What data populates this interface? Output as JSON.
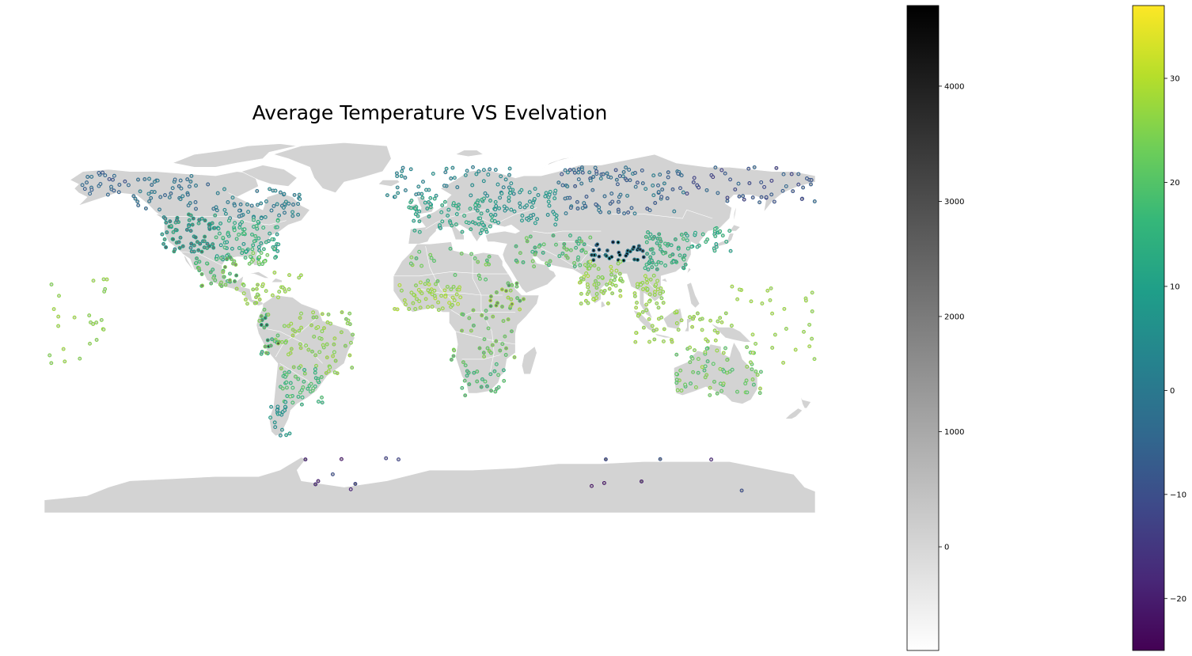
{
  "title": "Average Temperature VS Evelvation",
  "colors": {
    "land": "#d3d3d3",
    "border": "#ffffff",
    "background": "#ffffff",
    "viridis": [
      "#440154",
      "#482878",
      "#3e4989",
      "#31688e",
      "#26828e",
      "#1f9e89",
      "#35b779",
      "#6ece58",
      "#b5de2b",
      "#fde725"
    ],
    "greys": [
      "#ffffff",
      "#000000"
    ]
  },
  "elevation_colorbar": {
    "range": [
      -900,
      4700
    ],
    "ticks": [
      0,
      1000,
      2000,
      3000,
      4000
    ],
    "tick_labels": [
      "0",
      "1000",
      "2000",
      "3000",
      "4000"
    ],
    "colormap": "Greys"
  },
  "temperature_colorbar": {
    "range": [
      -25,
      37
    ],
    "ticks": [
      -20,
      -10,
      0,
      10,
      20,
      30
    ],
    "tick_labels": [
      "−20",
      "−10",
      "0",
      "10",
      "20",
      "30"
    ],
    "colormap": "viridis"
  },
  "chart_data": {
    "type": "scatter",
    "title": "Average Temperature VS Evelvation",
    "map": "world (plate carrée)",
    "marker_fill": "elevation (Greys colormap)",
    "marker_edge": "average temperature (viridis colormap)",
    "regions": [
      {
        "lon": [
          -165,
          -140
        ],
        "lat": [
          58,
          70
        ],
        "n": 25,
        "temp": [
          -10,
          -2
        ],
        "elev": [
          0,
          400
        ]
      },
      {
        "lon": [
          -140,
          -100
        ],
        "lat": [
          52,
          68
        ],
        "n": 45,
        "temp": [
          -6,
          2
        ],
        "elev": [
          200,
          700
        ]
      },
      {
        "lon": [
          -100,
          -60
        ],
        "lat": [
          48,
          62
        ],
        "n": 55,
        "temp": [
          -2,
          5
        ],
        "elev": [
          100,
          500
        ]
      },
      {
        "lon": [
          -125,
          -100
        ],
        "lat": [
          32,
          50
        ],
        "n": 70,
        "temp": [
          4,
          14
        ],
        "elev": [
          1000,
          2500
        ]
      },
      {
        "lon": [
          -100,
          -70
        ],
        "lat": [
          28,
          48
        ],
        "n": 90,
        "temp": [
          8,
          18
        ],
        "elev": [
          100,
          500
        ]
      },
      {
        "lon": [
          -85,
          -75
        ],
        "lat": [
          26,
          32
        ],
        "n": 15,
        "temp": [
          20,
          25
        ],
        "elev": [
          0,
          100
        ]
      },
      {
        "lon": [
          -110,
          -90
        ],
        "lat": [
          16,
          30
        ],
        "n": 40,
        "temp": [
          16,
          26
        ],
        "elev": [
          500,
          2200
        ]
      },
      {
        "lon": [
          -92,
          -78
        ],
        "lat": [
          8,
          18
        ],
        "n": 15,
        "temp": [
          24,
          28
        ],
        "elev": [
          0,
          1000
        ]
      },
      {
        "lon": [
          -80,
          -60
        ],
        "lat": [
          10,
          24
        ],
        "n": 15,
        "temp": [
          26,
          28
        ],
        "elev": [
          0,
          200
        ]
      },
      {
        "lon": [
          -80,
          -70
        ],
        "lat": [
          -18,
          6
        ],
        "n": 25,
        "temp": [
          12,
          26
        ],
        "elev": [
          500,
          3500
        ]
      },
      {
        "lon": [
          -70,
          -35
        ],
        "lat": [
          -25,
          5
        ],
        "n": 70,
        "temp": [
          24,
          28
        ],
        "elev": [
          50,
          800
        ]
      },
      {
        "lon": [
          -70,
          -50
        ],
        "lat": [
          -40,
          -22
        ],
        "n": 45,
        "temp": [
          14,
          22
        ],
        "elev": [
          50,
          600
        ]
      },
      {
        "lon": [
          -75,
          -65
        ],
        "lat": [
          -54,
          -38
        ],
        "n": 20,
        "temp": [
          4,
          10
        ],
        "elev": [
          0,
          400
        ]
      },
      {
        "lon": [
          -20,
          40
        ],
        "lat": [
          58,
          72
        ],
        "n": 55,
        "temp": [
          0,
          6
        ],
        "elev": [
          0,
          400
        ]
      },
      {
        "lon": [
          -10,
          30
        ],
        "lat": [
          40,
          58
        ],
        "n": 80,
        "temp": [
          8,
          14
        ],
        "elev": [
          100,
          800
        ]
      },
      {
        "lon": [
          30,
          60
        ],
        "lat": [
          45,
          62
        ],
        "n": 60,
        "temp": [
          4,
          10
        ],
        "elev": [
          100,
          300
        ]
      },
      {
        "lon": [
          60,
          120
        ],
        "lat": [
          50,
          72
        ],
        "n": 110,
        "temp": [
          -10,
          2
        ],
        "elev": [
          100,
          800
        ]
      },
      {
        "lon": [
          120,
          180
        ],
        "lat": [
          55,
          72
        ],
        "n": 50,
        "temp": [
          -14,
          -4
        ],
        "elev": [
          100,
          600
        ]
      },
      {
        "lon": [
          75,
          100
        ],
        "lat": [
          28,
          37
        ],
        "n": 35,
        "temp": [
          -6,
          4
        ],
        "elev": [
          3500,
          4700
        ]
      },
      {
        "lon": [
          100,
          120
        ],
        "lat": [
          24,
          42
        ],
        "n": 60,
        "temp": [
          12,
          18
        ],
        "elev": [
          100,
          1500
        ]
      },
      {
        "lon": [
          120,
          142
        ],
        "lat": [
          32,
          44
        ],
        "n": 30,
        "temp": [
          10,
          16
        ],
        "elev": [
          0,
          300
        ]
      },
      {
        "lon": [
          40,
          75
        ],
        "lat": [
          25,
          40
        ],
        "n": 50,
        "temp": [
          14,
          24
        ],
        "elev": [
          200,
          1500
        ]
      },
      {
        "lon": [
          70,
          90
        ],
        "lat": [
          8,
          28
        ],
        "n": 60,
        "temp": [
          24,
          30
        ],
        "elev": [
          0,
          600
        ]
      },
      {
        "lon": [
          95,
          110
        ],
        "lat": [
          5,
          22
        ],
        "n": 35,
        "temp": [
          25,
          28
        ],
        "elev": [
          0,
          300
        ]
      },
      {
        "lon": [
          95,
          140
        ],
        "lat": [
          -10,
          5
        ],
        "n": 45,
        "temp": [
          26,
          28
        ],
        "elev": [
          0,
          500
        ]
      },
      {
        "lon": [
          -17,
          15
        ],
        "lat": [
          5,
          18
        ],
        "n": 55,
        "temp": [
          25,
          30
        ],
        "elev": [
          100,
          400
        ]
      },
      {
        "lon": [
          -10,
          32
        ],
        "lat": [
          18,
          35
        ],
        "n": 25,
        "temp": [
          18,
          26
        ],
        "elev": [
          100,
          900
        ]
      },
      {
        "lon": [
          28,
          45
        ],
        "lat": [
          5,
          18
        ],
        "n": 25,
        "temp": [
          20,
          30
        ],
        "elev": [
          500,
          2300
        ]
      },
      {
        "lon": [
          10,
          40
        ],
        "lat": [
          -20,
          5
        ],
        "n": 35,
        "temp": [
          20,
          26
        ],
        "elev": [
          500,
          1500
        ]
      },
      {
        "lon": [
          15,
          35
        ],
        "lat": [
          -35,
          -20
        ],
        "n": 25,
        "temp": [
          14,
          20
        ],
        "elev": [
          200,
          1500
        ]
      },
      {
        "lon": [
          115,
          155
        ],
        "lat": [
          -35,
          -12
        ],
        "n": 70,
        "temp": [
          18,
          28
        ],
        "elev": [
          0,
          500
        ]
      },
      {
        "lon": [
          -180,
          -150
        ],
        "lat": [
          -20,
          20
        ],
        "n": 25,
        "temp": [
          24,
          28
        ],
        "elev": [
          0,
          100
        ]
      },
      {
        "lon": [
          140,
          180
        ],
        "lat": [
          -20,
          20
        ],
        "n": 30,
        "temp": [
          26,
          28
        ],
        "elev": [
          0,
          100
        ]
      },
      {
        "lon": [
          -60,
          170
        ],
        "lat": [
          -80,
          -64
        ],
        "n": 16,
        "temp": [
          -22,
          -8
        ],
        "elev": [
          0,
          2000
        ]
      }
    ]
  }
}
